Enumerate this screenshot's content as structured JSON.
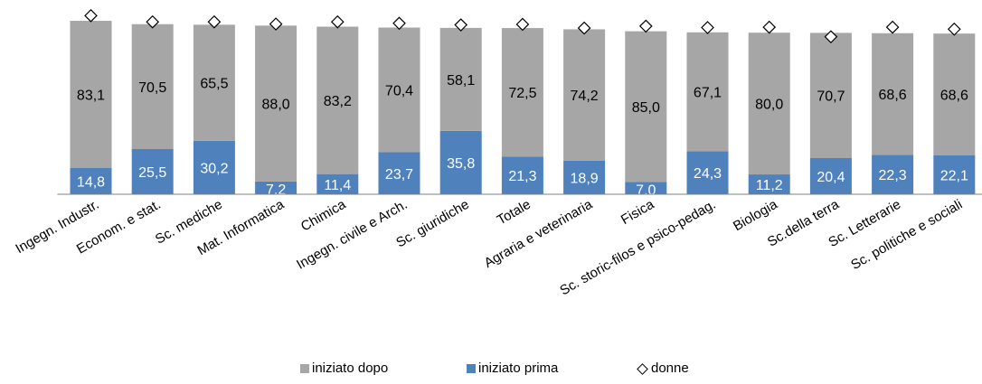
{
  "chart_data": {
    "type": "bar",
    "stacked": true,
    "categories": [
      "Ingegn. Industr.",
      "Econom. e stat.",
      "Sc. mediche",
      "Mat. Informatica",
      "Chimica",
      "Ingegn. civile e Arch.",
      "Sc. giuridiche",
      "Totale",
      "Agraria e veterinaria",
      "Fisica",
      "Sc. storic-filos e psico-pedag.",
      "Biologia",
      "Sc.della terra",
      "Sc. Letterarie",
      "Sc. politiche e sociali"
    ],
    "series": [
      {
        "name": "iniziato prima",
        "color": "#4F81BD",
        "values": [
          14.8,
          25.5,
          30.2,
          7.2,
          11.4,
          23.7,
          35.8,
          21.3,
          18.9,
          7.0,
          24.3,
          11.2,
          20.4,
          22.3,
          22.1
        ],
        "labels": [
          "14,8",
          "25,5",
          "30,2",
          "7,2",
          "11,4",
          "23,7",
          "35,8",
          "21,3",
          "18,9",
          "7,0",
          "24,3",
          "11,2",
          "20,4",
          "22,3",
          "22,1"
        ]
      },
      {
        "name": "iniziato dopo",
        "color": "#A6A6A6",
        "values": [
          83.1,
          70.5,
          65.5,
          88.0,
          83.2,
          70.4,
          58.1,
          72.5,
          74.2,
          85.0,
          67.1,
          80.0,
          70.7,
          68.6,
          68.6
        ],
        "labels": [
          "83,1",
          "70,5",
          "65,5",
          "88,0",
          "83,2",
          "70,4",
          "58,1",
          "72,5",
          "74,2",
          "85,0",
          "67,1",
          "80,0",
          "70,7",
          "68,6",
          "68,6"
        ]
      }
    ],
    "markers": {
      "name": "donne",
      "values": [
        100.8,
        97.3,
        97.3,
        96.1,
        97.3,
        96.5,
        95.6,
        95.9,
        93.8,
        94.9,
        94.1,
        94.3,
        88.9,
        94.3,
        93.2
      ]
    },
    "ylim": [
      0,
      102
    ],
    "legend": {
      "position": "bottom",
      "order": [
        "iniziato dopo",
        "iniziato prima",
        "donne"
      ]
    }
  },
  "legend": {
    "dopo": "iniziato dopo",
    "prima": "iniziato prima",
    "donne": "donne"
  }
}
